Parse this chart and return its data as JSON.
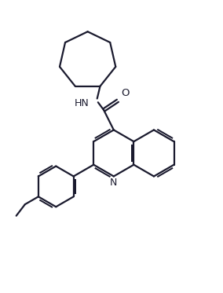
{
  "bg_color": "#ffffff",
  "line_color": "#1a1a2e",
  "line_width": 1.6,
  "figsize": [
    2.84,
    3.73
  ],
  "dpi": 100,
  "xlim": [
    0,
    10
  ],
  "ylim": [
    0,
    13
  ]
}
